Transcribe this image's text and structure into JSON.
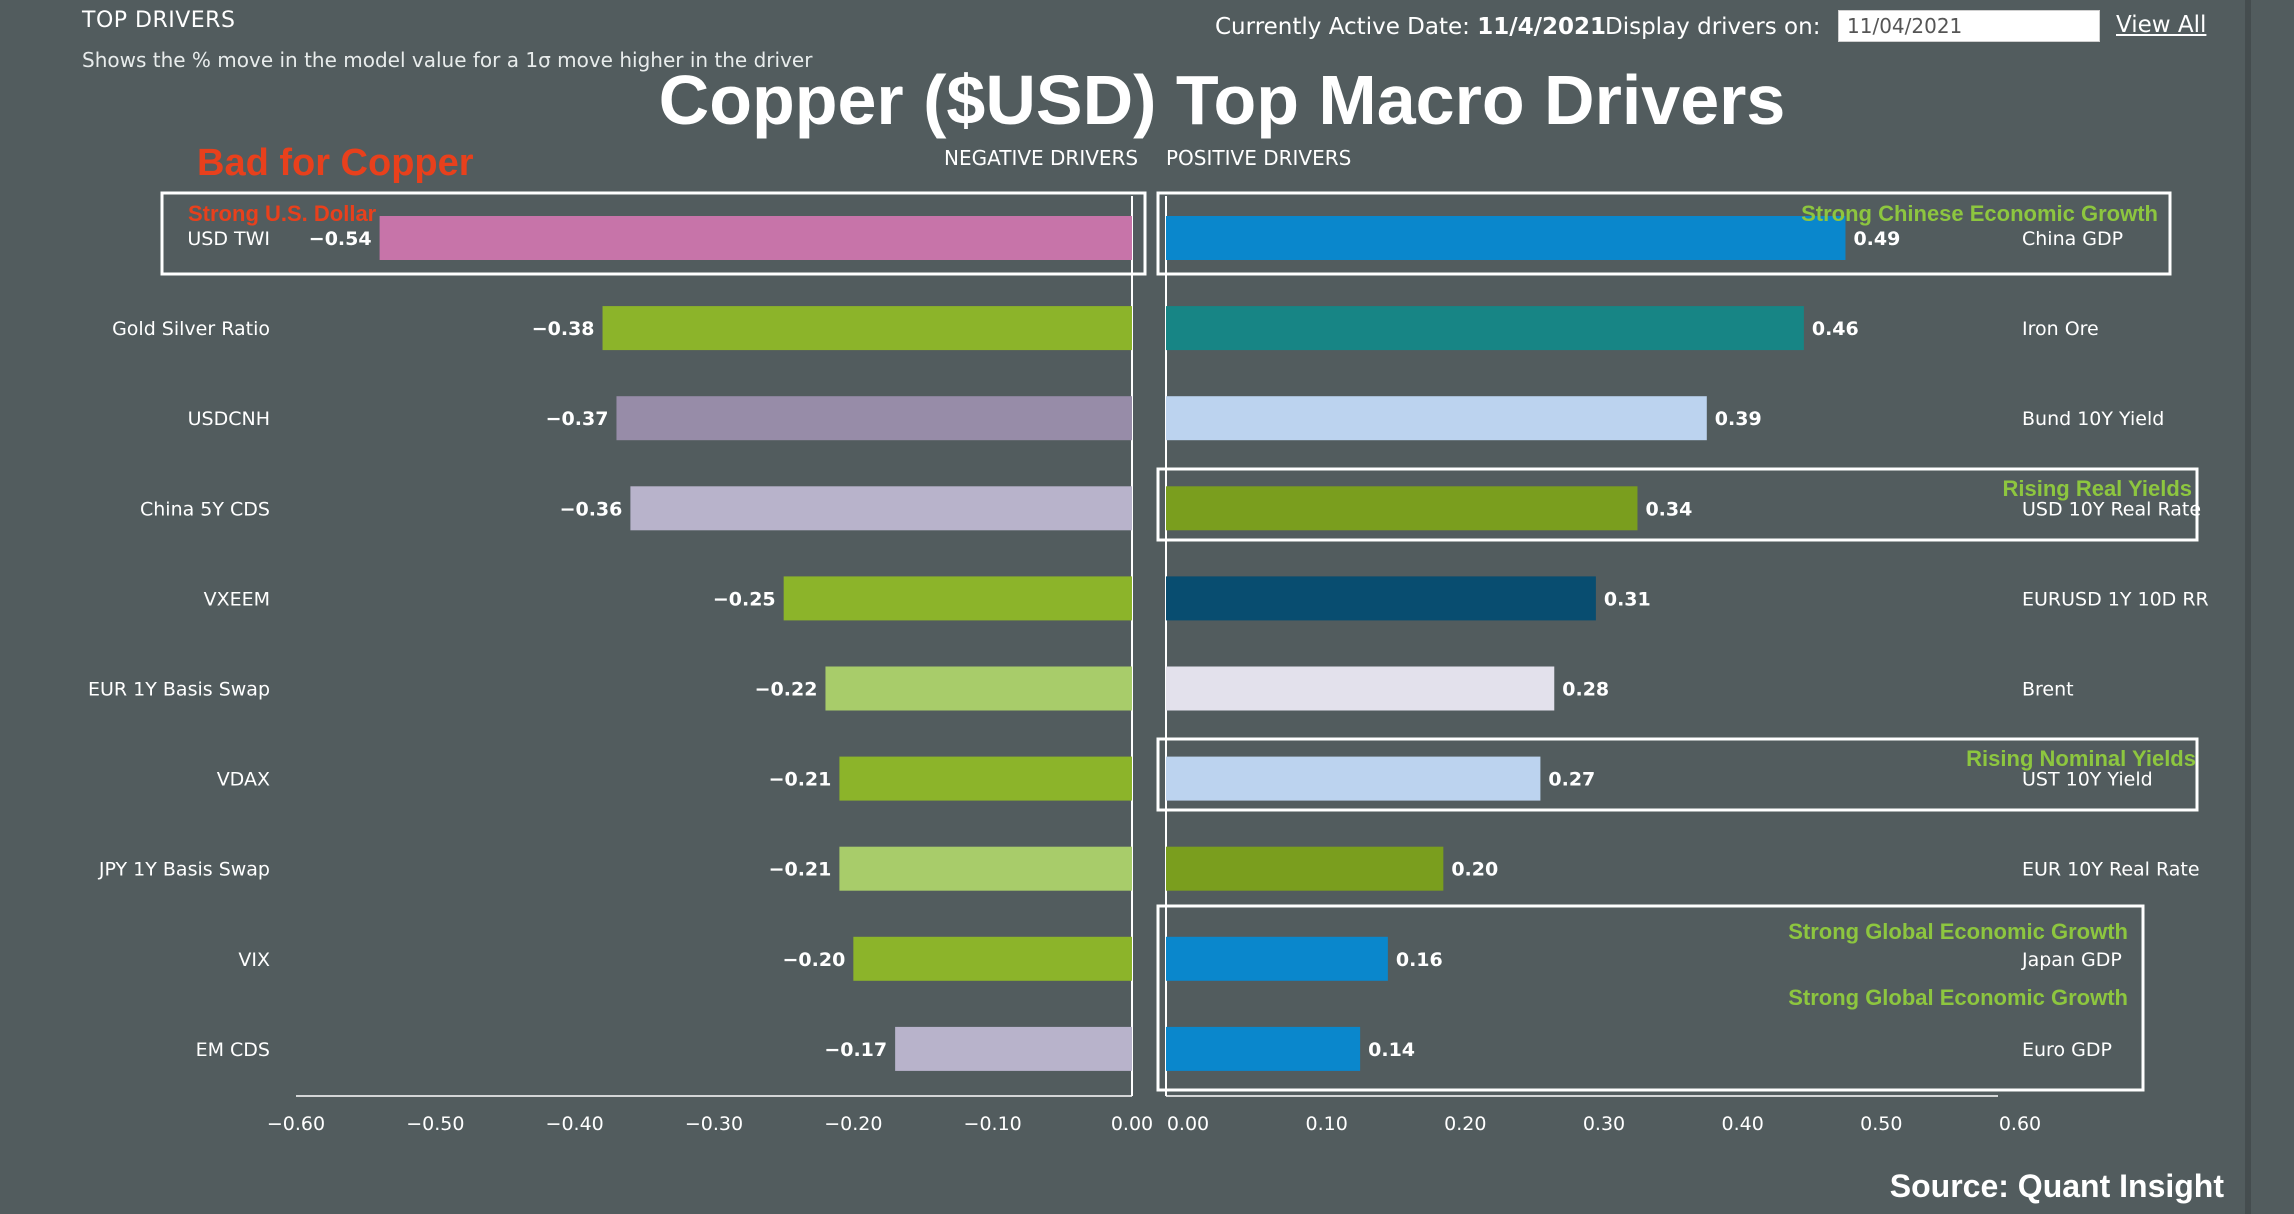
{
  "header": {
    "title": "TOP DRIVERS",
    "subtitle": "Shows the % move in the model value for a 1σ move higher in the driver",
    "active_date_label": "Currently Active Date: ",
    "active_date": "11/4/2021",
    "display_label": "Display drivers on:",
    "display_date": "11/04/2021",
    "view_all": "View All"
  },
  "main_title": "Copper ($USD) Top Macro Drivers",
  "bad_for_copper": "Bad for Copper",
  "source": "Source: Quant Insight",
  "chart_data": {
    "type": "bar",
    "orientation": "horizontal",
    "title": "Copper ($USD) Top Macro Drivers",
    "negative_header": "NEGATIVE DRIVERS",
    "positive_header": "POSITIVE DRIVERS",
    "negative": {
      "categories": [
        "USD TWI",
        "Gold Silver Ratio",
        "USDCNH",
        "China 5Y CDS",
        "VXEEM",
        "EUR 1Y Basis Swap",
        "VDAX",
        "JPY 1Y Basis Swap",
        "VIX",
        "EM CDS"
      ],
      "values": [
        -0.54,
        -0.38,
        -0.37,
        -0.36,
        -0.25,
        -0.22,
        -0.21,
        -0.21,
        -0.2,
        -0.17
      ],
      "value_labels": [
        "−0.54",
        "−0.38",
        "−0.37",
        "−0.36",
        "−0.25",
        "−0.22",
        "−0.21",
        "−0.21",
        "−0.20",
        "−0.17"
      ],
      "colors": [
        "#c774a9",
        "#8cb42a",
        "#978ca8",
        "#b8b3cb",
        "#8cb42a",
        "#a8cc6a",
        "#8cb42a",
        "#a8cc6a",
        "#8cb42a",
        "#b8b3cb"
      ],
      "xlim": [
        -0.6,
        0
      ],
      "ticks": [
        "−0.60",
        "−0.50",
        "−0.40",
        "−0.30",
        "−0.20",
        "−0.10",
        "0.00"
      ]
    },
    "positive": {
      "categories": [
        "China GDP",
        "Iron Ore",
        "Bund 10Y Yield",
        "USD 10Y Real Rate",
        "EURUSD 1Y 10D RR",
        "Brent",
        "UST 10Y Yield",
        "EUR 10Y Real Rate",
        "Japan GDP",
        "Euro GDP"
      ],
      "values": [
        0.49,
        0.46,
        0.39,
        0.34,
        0.31,
        0.28,
        0.27,
        0.2,
        0.16,
        0.14
      ],
      "value_labels": [
        "0.49",
        "0.46",
        "0.39",
        "0.34",
        "0.31",
        "0.28",
        "0.27",
        "0.20",
        "0.16",
        "0.14"
      ],
      "colors": [
        "#0a87cc",
        "#178585",
        "#bcd3ef",
        "#7a9e1e",
        "#084d70",
        "#e3e1ec",
        "#bcd3ef",
        "#7a9e1e",
        "#0a87cc",
        "#0a87cc"
      ],
      "xlim": [
        0,
        0.6
      ],
      "ticks": [
        "0.00",
        "0.10",
        "0.20",
        "0.30",
        "0.40",
        "0.50",
        "0.60"
      ]
    },
    "annotations": [
      {
        "text": "Strong U.S. Dollar",
        "target": "USD TWI",
        "color": "#e8401c"
      },
      {
        "text": "Strong Chinese Economic Growth",
        "target": "China GDP",
        "color": "#8dc63f"
      },
      {
        "text": "Rising Real Yields",
        "target": "USD 10Y Real Rate",
        "color": "#8dc63f"
      },
      {
        "text": "Rising Nominal Yields",
        "target": "UST 10Y Yield",
        "color": "#8dc63f"
      },
      {
        "text": "Strong Global Economic Growth",
        "target": "Japan GDP",
        "color": "#8dc63f"
      },
      {
        "text": "Strong Global Economic Growth",
        "target": "Euro GDP",
        "color": "#8dc63f"
      }
    ]
  }
}
